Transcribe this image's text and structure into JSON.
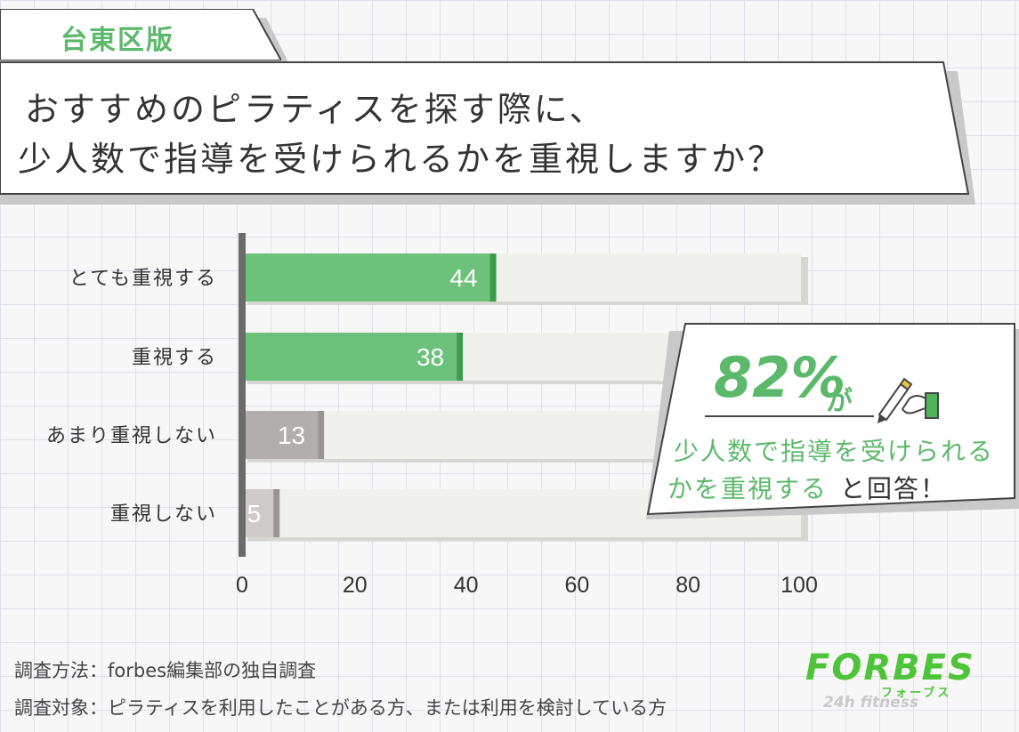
{
  "region_tag": "台東区版",
  "title": {
    "line1": "おすすめのピラティスを探す際に、",
    "line2": "少人数で指導を受けられるかを重視しますか？"
  },
  "chart_data": {
    "type": "bar",
    "orientation": "horizontal",
    "categories": [
      "とても重視する",
      "重視する",
      "あまり重視しない",
      "重視しない"
    ],
    "values": [
      44,
      38,
      13,
      5
    ],
    "colors": [
      "#6cc17b",
      "#6cc17b",
      "#b3aeae",
      "#cfcbcb"
    ],
    "xticks": [
      0,
      20,
      40,
      60,
      80,
      100
    ],
    "xlim": [
      0,
      100
    ],
    "track_color": "#f0f1ed"
  },
  "callout": {
    "percent": "82%",
    "suffix": "が",
    "line1": "少人数で指導を受けられる",
    "line2_highlight": "かを重視する",
    "line2_rest": "と回答！",
    "accent": "#5cb86a"
  },
  "footer": {
    "method": "調査方法：forbes編集部の独自調査",
    "target": "調査対象：ピラティスを利用したことがある方、または利用を検討している方"
  },
  "logo": {
    "main": "FORBES",
    "kana": "フォーブス",
    "sub": "24h fitness",
    "color": "#4ec43a"
  }
}
